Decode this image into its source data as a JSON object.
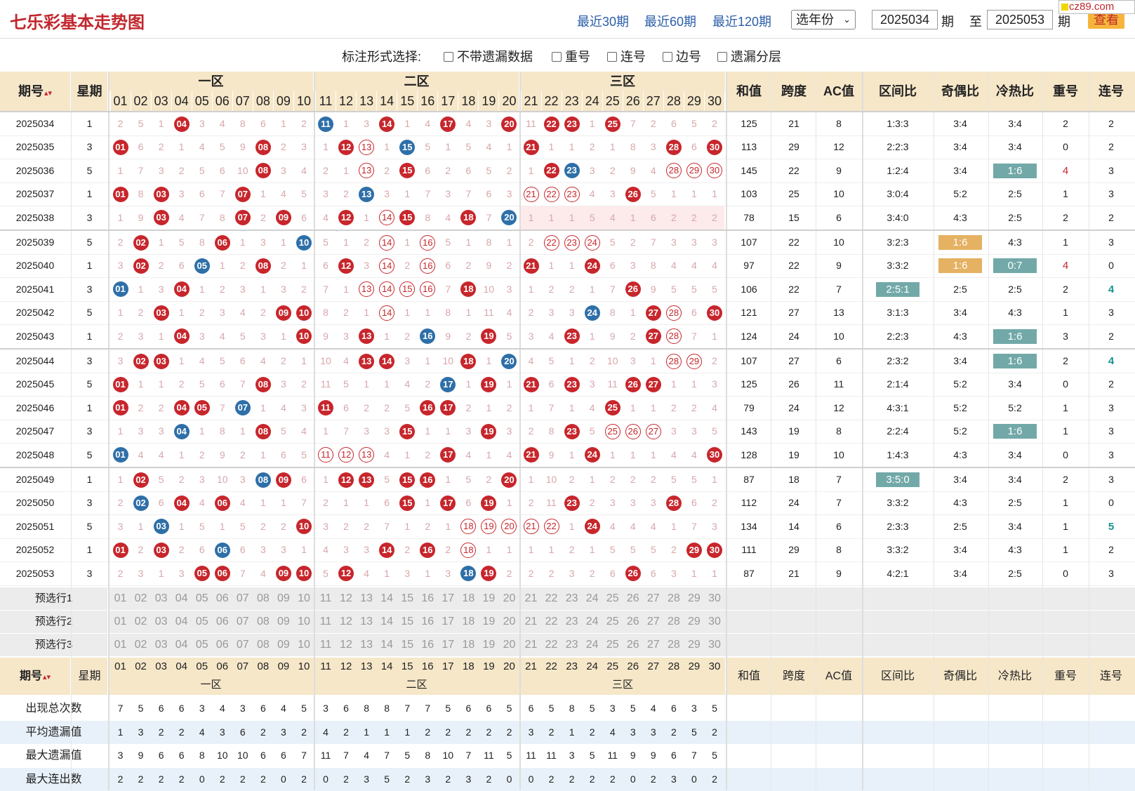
{
  "header": {
    "title": "七乐彩基本走势图",
    "period_links": [
      "最近30期",
      "最近60期",
      "最近120期"
    ],
    "year_select": "选年份",
    "from_period": "2025034",
    "to_period": "2025053",
    "lbl_period": "期",
    "lbl_to": "至",
    "view_button": "查看",
    "watermark": "cz89.com"
  },
  "options": {
    "label": "标注形式选择:",
    "items": [
      "不带遗漏数据",
      "重号",
      "连号",
      "边号",
      "遗漏分层"
    ]
  },
  "table": {
    "col_period": "期号",
    "col_week": "星期",
    "zones": [
      "一区",
      "二区",
      "三区"
    ],
    "col_sum": "和值",
    "col_span": "跨度",
    "col_ac": "AC值",
    "col_zone_ratio": "区间比",
    "col_odd_even": "奇偶比",
    "col_hot_cold": "冷热比",
    "col_repeat": "重号",
    "col_consec": "连号",
    "numbers": [
      "01",
      "02",
      "03",
      "04",
      "05",
      "06",
      "07",
      "08",
      "09",
      "10",
      "11",
      "12",
      "13",
      "14",
      "15",
      "16",
      "17",
      "18",
      "19",
      "20",
      "21",
      "22",
      "23",
      "24",
      "25",
      "26",
      "27",
      "28",
      "29",
      "30"
    ],
    "rows": [
      {
        "period": "2025034",
        "week": "1",
        "cells": [
          "2",
          "5",
          "1",
          "R04",
          "3",
          "4",
          "8",
          "6",
          "1",
          "2",
          "B11",
          "1",
          "3",
          "R14",
          "1",
          "4",
          "R17",
          "4",
          "3",
          "R20",
          "11",
          "R22",
          "R23",
          "1",
          "R25",
          "7",
          "2",
          "6",
          "5",
          "2"
        ],
        "sum": "125",
        "span": "21",
        "ac": "8",
        "zr": "1:3:3",
        "oe": "3:4",
        "hc": "3:4",
        "rep": "2",
        "con": "2"
      },
      {
        "period": "2025035",
        "week": "3",
        "cells": [
          "R01",
          "6",
          "2",
          "1",
          "4",
          "5",
          "9",
          "R08",
          "2",
          "3",
          "1",
          "R12",
          "P13",
          "1",
          "B15",
          "5",
          "1",
          "5",
          "4",
          "1",
          "R21",
          "1",
          "1",
          "2",
          "1",
          "8",
          "3",
          "R28",
          "6",
          "R30"
        ],
        "sum": "113",
        "span": "29",
        "ac": "12",
        "zr": "2:2:3",
        "oe": "3:4",
        "hc": "3:4",
        "rep": "0",
        "con": "2"
      },
      {
        "period": "2025036",
        "week": "5",
        "cells": [
          "1",
          "7",
          "3",
          "2",
          "5",
          "6",
          "10",
          "R08",
          "3",
          "4",
          "2",
          "1",
          "P13",
          "2",
          "R15",
          "6",
          "2",
          "6",
          "5",
          "2",
          "1",
          "R22",
          "B23",
          "3",
          "2",
          "9",
          "4",
          "P28",
          "P29",
          "P30"
        ],
        "sum": "145",
        "span": "22",
        "ac": "9",
        "zr": "1:2:4",
        "oe": "3:4",
        "hc": "T1:6",
        "rep": "r4",
        "con": "3"
      },
      {
        "period": "2025037",
        "week": "1",
        "cells": [
          "R01",
          "8",
          "R03",
          "3",
          "6",
          "7",
          "R07",
          "1",
          "4",
          "5",
          "3",
          "2",
          "B13",
          "3",
          "1",
          "7",
          "3",
          "7",
          "6",
          "3",
          "P21",
          "P22",
          "P23",
          "4",
          "3",
          "R26",
          "5",
          "1",
          "1",
          "1"
        ],
        "sum": "103",
        "span": "25",
        "ac": "10",
        "zr": "3:0:4",
        "oe": "5:2",
        "hc": "2:5",
        "rep": "1",
        "con": "3"
      },
      {
        "period": "2025038",
        "week": "3",
        "cells": [
          "1",
          "9",
          "R03",
          "4",
          "7",
          "8",
          "R07",
          "2",
          "R09",
          "6",
          "4",
          "R12",
          "1",
          "P14",
          "R15",
          "8",
          "4",
          "R18",
          "7",
          "B20",
          "1",
          "1",
          "1",
          "5",
          "4",
          "1",
          "6",
          "2",
          "2",
          "2"
        ],
        "sum": "78",
        "span": "15",
        "ac": "6",
        "zr": "3:4:0",
        "oe": "4:3",
        "hc": "2:5",
        "rep": "2",
        "con": "2"
      },
      {
        "period": "2025039",
        "week": "5",
        "cells": [
          "2",
          "R02",
          "1",
          "5",
          "8",
          "R06",
          "1",
          "3",
          "1",
          "B10",
          "5",
          "1",
          "2",
          "P14",
          "1",
          "P16",
          "5",
          "1",
          "8",
          "1",
          "2",
          "P22",
          "P23",
          "P24",
          "5",
          "2",
          "7",
          "3",
          "3",
          "3"
        ],
        "sum": "107",
        "span": "22",
        "ac": "10",
        "zr": "3:2:3",
        "oe": "O1:6",
        "hc": "4:3",
        "rep": "1",
        "con": "3"
      },
      {
        "period": "2025040",
        "week": "1",
        "cells": [
          "3",
          "R02",
          "2",
          "6",
          "B05",
          "1",
          "2",
          "R08",
          "2",
          "1",
          "6",
          "R12",
          "3",
          "P14",
          "2",
          "P16",
          "6",
          "2",
          "9",
          "2",
          "R21",
          "1",
          "1",
          "R24",
          "6",
          "3",
          "8",
          "4",
          "4",
          "4"
        ],
        "sum": "97",
        "span": "22",
        "ac": "9",
        "zr": "3:3:2",
        "oe": "O1:6",
        "hc": "T0:7",
        "rep": "r4",
        "con": "0"
      },
      {
        "period": "2025041",
        "week": "3",
        "cells": [
          "B01",
          "1",
          "3",
          "R04",
          "1",
          "2",
          "3",
          "1",
          "3",
          "2",
          "7",
          "1",
          "P13",
          "P14",
          "P15",
          "P16",
          "7",
          "R18",
          "10",
          "3",
          "1",
          "2",
          "2",
          "1",
          "7",
          "R26",
          "9",
          "5",
          "5",
          "5"
        ],
        "sum": "106",
        "span": "22",
        "ac": "7",
        "zr": "T2:5:1",
        "oe": "2:5",
        "hc": "2:5",
        "rep": "2",
        "con": "t4"
      },
      {
        "period": "2025042",
        "week": "5",
        "cells": [
          "1",
          "2",
          "R03",
          "1",
          "2",
          "3",
          "4",
          "2",
          "R09",
          "R10",
          "8",
          "2",
          "1",
          "P14",
          "1",
          "1",
          "8",
          "1",
          "11",
          "4",
          "2",
          "3",
          "3",
          "B24",
          "8",
          "1",
          "R27",
          "P28",
          "6",
          "R30"
        ],
        "sum": "121",
        "span": "27",
        "ac": "13",
        "zr": "3:1:3",
        "oe": "3:4",
        "hc": "4:3",
        "rep": "1",
        "con": "3"
      },
      {
        "period": "2025043",
        "week": "1",
        "cells": [
          "2",
          "3",
          "1",
          "R04",
          "3",
          "4",
          "5",
          "3",
          "1",
          "R10",
          "9",
          "3",
          "R13",
          "1",
          "2",
          "B16",
          "9",
          "2",
          "R19",
          "5",
          "3",
          "4",
          "R23",
          "1",
          "9",
          "2",
          "R27",
          "P28",
          "7",
          "1"
        ],
        "sum": "124",
        "span": "24",
        "ac": "10",
        "zr": "2:2:3",
        "oe": "4:3",
        "hc": "T1:6",
        "rep": "3",
        "con": "2"
      },
      {
        "period": "2025044",
        "week": "3",
        "cells": [
          "3",
          "R02",
          "R03",
          "1",
          "4",
          "5",
          "6",
          "4",
          "2",
          "1",
          "10",
          "4",
          "R13",
          "R14",
          "3",
          "1",
          "10",
          "R18",
          "1",
          "B20",
          "4",
          "5",
          "1",
          "2",
          "10",
          "3",
          "1",
          "P28",
          "P29",
          "2"
        ],
        "sum": "107",
        "span": "27",
        "ac": "6",
        "zr": "2:3:2",
        "oe": "3:4",
        "hc": "T1:6",
        "rep": "2",
        "con": "t4"
      },
      {
        "period": "2025045",
        "week": "5",
        "cells": [
          "R01",
          "1",
          "1",
          "2",
          "5",
          "6",
          "7",
          "R08",
          "3",
          "2",
          "11",
          "5",
          "1",
          "1",
          "4",
          "2",
          "B17",
          "1",
          "R19",
          "1",
          "R21",
          "6",
          "R23",
          "3",
          "11",
          "R26",
          "R27",
          "1",
          "1",
          "3"
        ],
        "sum": "125",
        "span": "26",
        "ac": "11",
        "zr": "2:1:4",
        "oe": "5:2",
        "hc": "3:4",
        "rep": "0",
        "con": "2"
      },
      {
        "period": "2025046",
        "week": "1",
        "cells": [
          "R01",
          "2",
          "2",
          "R04",
          "R05",
          "7",
          "B07",
          "1",
          "4",
          "3",
          "R11",
          "6",
          "2",
          "2",
          "5",
          "R16",
          "R17",
          "2",
          "1",
          "2",
          "1",
          "7",
          "1",
          "4",
          "R25",
          "1",
          "1",
          "2",
          "2",
          "4"
        ],
        "sum": "79",
        "span": "24",
        "ac": "12",
        "zr": "4:3:1",
        "oe": "5:2",
        "hc": "5:2",
        "rep": "1",
        "con": "3"
      },
      {
        "period": "2025047",
        "week": "3",
        "cells": [
          "1",
          "3",
          "3",
          "B04",
          "1",
          "8",
          "1",
          "R08",
          "5",
          "4",
          "1",
          "7",
          "3",
          "3",
          "R15",
          "1",
          "1",
          "3",
          "R19",
          "3",
          "2",
          "8",
          "R23",
          "5",
          "P25",
          "P26",
          "P27",
          "3",
          "3",
          "5"
        ],
        "sum": "143",
        "span": "19",
        "ac": "8",
        "zr": "2:2:4",
        "oe": "5:2",
        "hc": "T1:6",
        "rep": "1",
        "con": "3"
      },
      {
        "period": "2025048",
        "week": "5",
        "cells": [
          "B01",
          "4",
          "4",
          "1",
          "2",
          "9",
          "2",
          "1",
          "6",
          "5",
          "P11",
          "P12",
          "P13",
          "4",
          "1",
          "2",
          "R17",
          "4",
          "1",
          "4",
          "R21",
          "9",
          "1",
          "R24",
          "1",
          "1",
          "1",
          "4",
          "4",
          "R30"
        ],
        "sum": "128",
        "span": "19",
        "ac": "10",
        "zr": "1:4:3",
        "oe": "4:3",
        "hc": "3:4",
        "rep": "0",
        "con": "3"
      },
      {
        "period": "2025049",
        "week": "1",
        "cells": [
          "1",
          "R02",
          "5",
          "2",
          "3",
          "10",
          "3",
          "B08",
          "R09",
          "6",
          "1",
          "R12",
          "R13",
          "5",
          "R15",
          "R16",
          "1",
          "5",
          "2",
          "R20",
          "1",
          "10",
          "2",
          "1",
          "2",
          "2",
          "2",
          "5",
          "5",
          "1"
        ],
        "sum": "87",
        "span": "18",
        "ac": "7",
        "zr": "T3:5:0",
        "oe": "3:4",
        "hc": "3:4",
        "rep": "2",
        "con": "3"
      },
      {
        "period": "2025050",
        "week": "3",
        "cells": [
          "2",
          "B02",
          "6",
          "R04",
          "4",
          "R06",
          "4",
          "1",
          "1",
          "7",
          "2",
          "1",
          "1",
          "6",
          "R15",
          "1",
          "R17",
          "6",
          "R19",
          "1",
          "2",
          "11",
          "R23",
          "2",
          "3",
          "3",
          "3",
          "R28",
          "6",
          "2"
        ],
        "sum": "112",
        "span": "24",
        "ac": "7",
        "zr": "3:3:2",
        "oe": "4:3",
        "hc": "2:5",
        "rep": "1",
        "con": "0"
      },
      {
        "period": "2025051",
        "week": "5",
        "cells": [
          "3",
          "1",
          "B03",
          "1",
          "5",
          "1",
          "5",
          "2",
          "2",
          "R10",
          "3",
          "2",
          "2",
          "7",
          "1",
          "2",
          "1",
          "P18",
          "P19",
          "P20",
          "P21",
          "P22",
          "1",
          "R24",
          "4",
          "4",
          "4",
          "1",
          "7",
          "3"
        ],
        "sum": "134",
        "span": "14",
        "ac": "6",
        "zr": "2:3:3",
        "oe": "2:5",
        "hc": "3:4",
        "rep": "1",
        "con": "t5"
      },
      {
        "period": "2025052",
        "week": "1",
        "cells": [
          "R01",
          "2",
          "R03",
          "2",
          "6",
          "B06",
          "6",
          "3",
          "3",
          "1",
          "4",
          "3",
          "3",
          "R14",
          "2",
          "R16",
          "2",
          "P18",
          "1",
          "1",
          "1",
          "1",
          "2",
          "1",
          "5",
          "5",
          "5",
          "2",
          "R29",
          "R30"
        ],
        "sum": "111",
        "span": "29",
        "ac": "8",
        "zr": "3:3:2",
        "oe": "3:4",
        "hc": "4:3",
        "rep": "1",
        "con": "2"
      },
      {
        "period": "2025053",
        "week": "3",
        "cells": [
          "2",
          "3",
          "1",
          "3",
          "R05",
          "R06",
          "7",
          "4",
          "R09",
          "R10",
          "5",
          "R12",
          "4",
          "1",
          "3",
          "1",
          "3",
          "B18",
          "R19",
          "2",
          "2",
          "2",
          "3",
          "2",
          "6",
          "R26",
          "6",
          "3",
          "1",
          "1"
        ],
        "sum": "87",
        "span": "21",
        "ac": "9",
        "zr": "4:2:1",
        "oe": "3:4",
        "hc": "2:5",
        "rep": "0",
        "con": "3"
      }
    ],
    "preselect_rows": [
      "预选行1",
      "预选行2",
      "预选行3"
    ],
    "stats": [
      {
        "label": "出现总次数",
        "values": [
          "7",
          "5",
          "6",
          "6",
          "3",
          "4",
          "3",
          "6",
          "4",
          "5",
          "3",
          "6",
          "8",
          "8",
          "7",
          "7",
          "5",
          "6",
          "6",
          "5",
          "6",
          "5",
          "8",
          "5",
          "3",
          "5",
          "4",
          "6",
          "3",
          "5"
        ]
      },
      {
        "label": "平均遗漏值",
        "values": [
          "1",
          "3",
          "2",
          "2",
          "4",
          "3",
          "6",
          "2",
          "3",
          "2",
          "4",
          "2",
          "1",
          "1",
          "1",
          "2",
          "2",
          "2",
          "2",
          "2",
          "3",
          "2",
          "1",
          "2",
          "4",
          "3",
          "3",
          "2",
          "5",
          "2"
        ]
      },
      {
        "label": "最大遗漏值",
        "values": [
          "3",
          "9",
          "6",
          "6",
          "8",
          "10",
          "10",
          "6",
          "6",
          "7",
          "11",
          "7",
          "4",
          "7",
          "5",
          "8",
          "10",
          "7",
          "11",
          "5",
          "11",
          "11",
          "3",
          "5",
          "11",
          "9",
          "9",
          "6",
          "7",
          "5"
        ]
      },
      {
        "label": "最大连出数",
        "values": [
          "2",
          "2",
          "2",
          "2",
          "0",
          "2",
          "2",
          "2",
          "0",
          "2",
          "0",
          "2",
          "3",
          "5",
          "2",
          "3",
          "2",
          "3",
          "2",
          "0",
          "0",
          "2",
          "2",
          "2",
          "2",
          "0",
          "2",
          "3",
          "0",
          "2"
        ]
      }
    ]
  },
  "colors": {
    "red": "#c7262c",
    "blue": "#2e6fa8",
    "teal": "#72a9a8",
    "orange": "#e5b162",
    "header_bg": "#f6e7c9"
  }
}
